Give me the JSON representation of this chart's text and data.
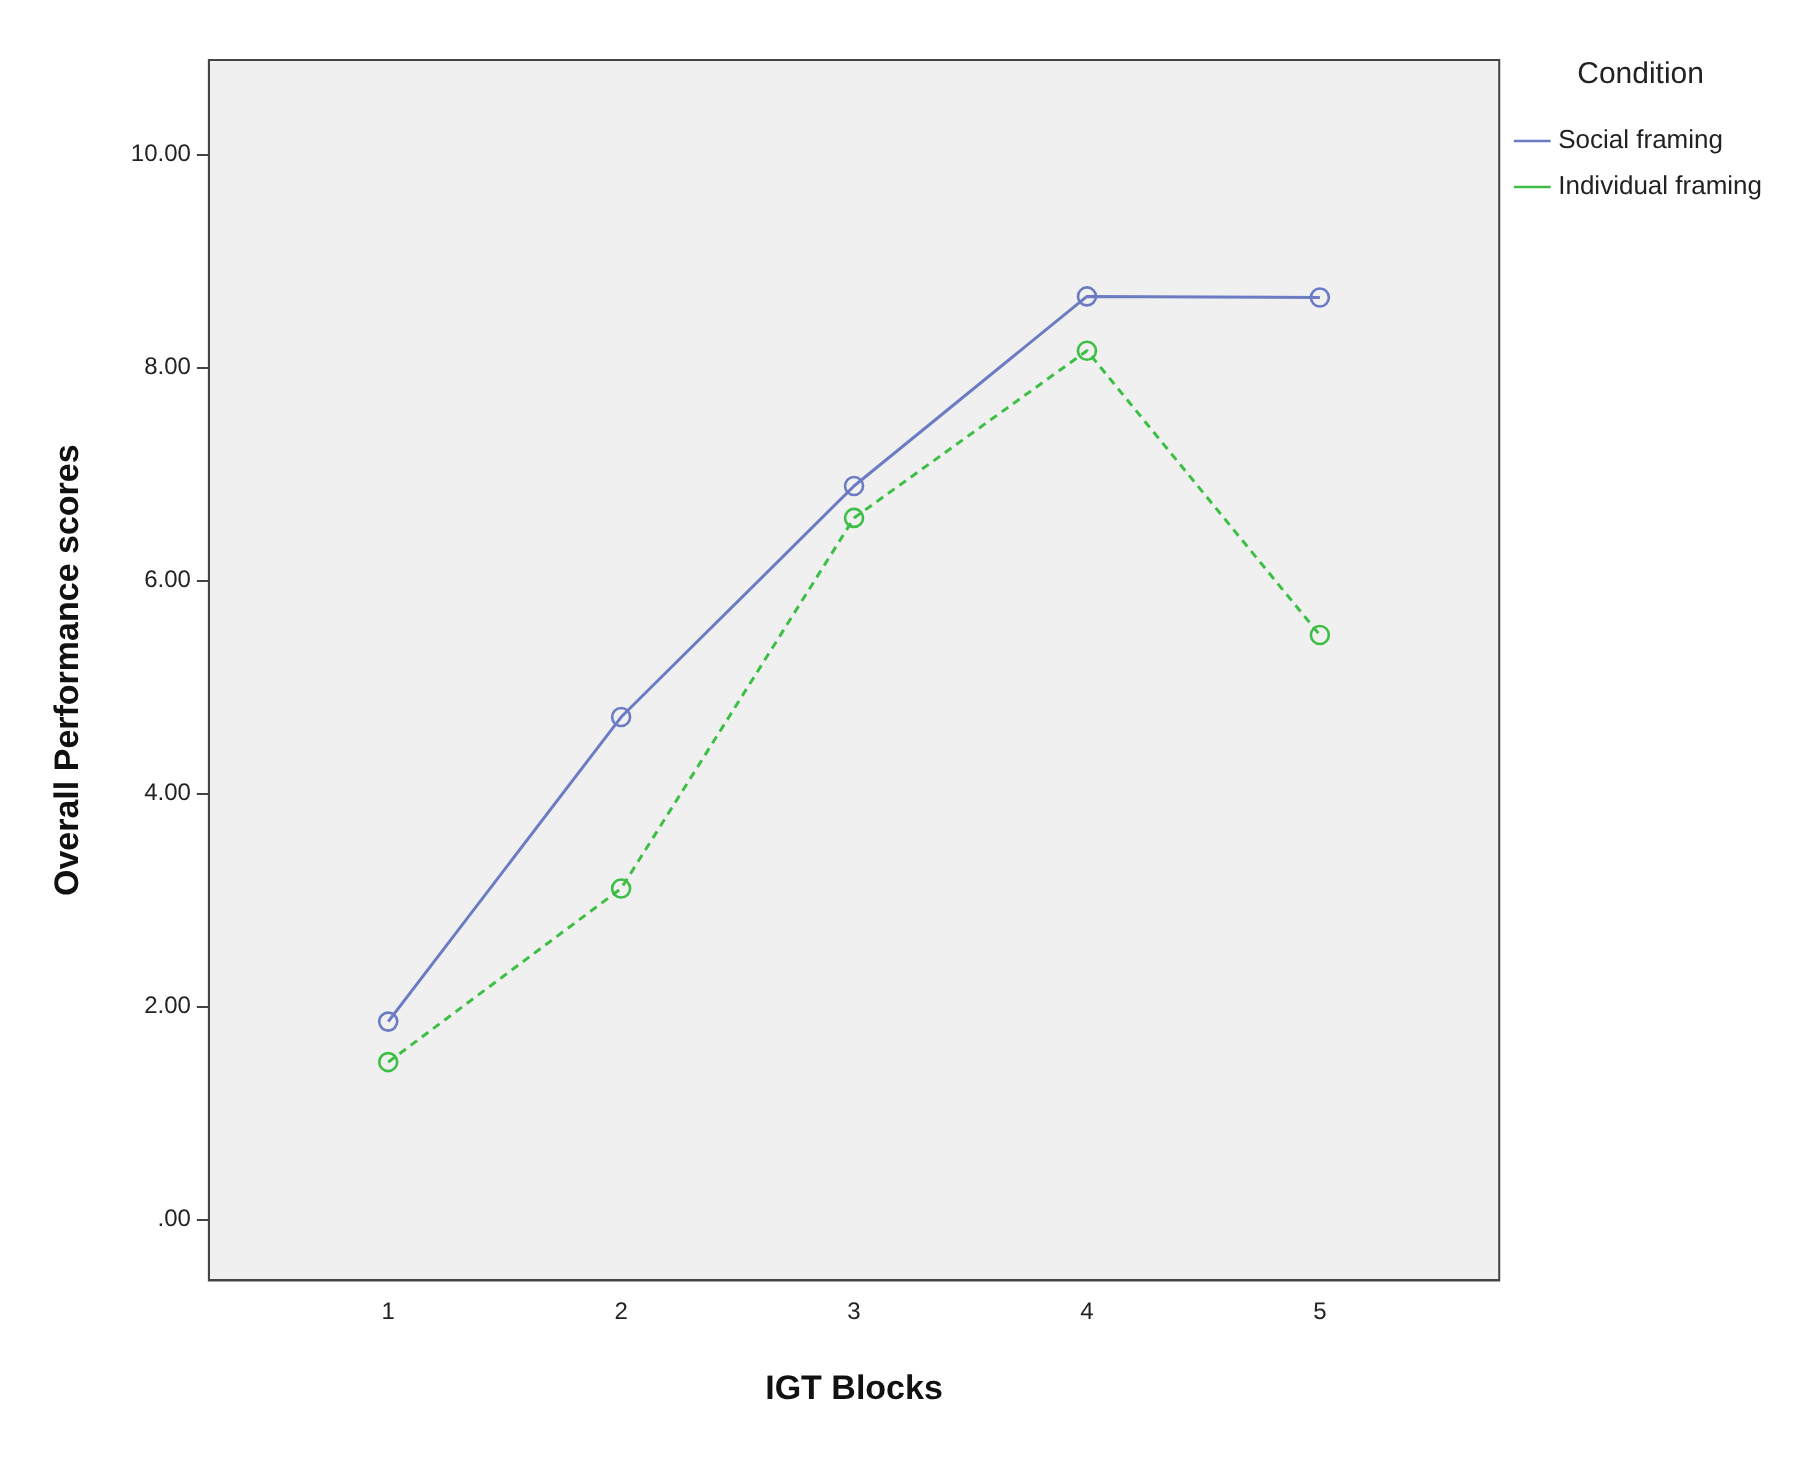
{
  "chart_data": {
    "type": "line",
    "xlabel": "IGT Blocks",
    "ylabel": "Overall Performance scores",
    "legend_title": "Condition",
    "x": [
      1,
      2,
      3,
      4,
      5
    ],
    "series": [
      {
        "name": "Social framing",
        "color": "#6b7cc4",
        "values": [
          1.86,
          4.72,
          6.89,
          8.67,
          8.66
        ],
        "line_style": "solid"
      },
      {
        "name": "Individual framing",
        "color": "#3dbf45",
        "values": [
          1.48,
          3.11,
          6.59,
          8.16,
          5.49
        ],
        "line_style": "dashed"
      }
    ],
    "xlim": [
      0.23,
      5.77
    ],
    "xticks": [
      1,
      2,
      3,
      4,
      5
    ],
    "ylim": [
      -0.57,
      10.89
    ],
    "yticks": [
      {
        "value": 0,
        "label": ".00"
      },
      {
        "value": 2,
        "label": "2.00"
      },
      {
        "value": 4,
        "label": "4.00"
      },
      {
        "value": 6,
        "label": "6.00"
      },
      {
        "value": 8,
        "label": "8.00"
      },
      {
        "value": 10,
        "label": "10.00"
      }
    ],
    "marker": "circle",
    "grid": false,
    "legend": "top right"
  }
}
